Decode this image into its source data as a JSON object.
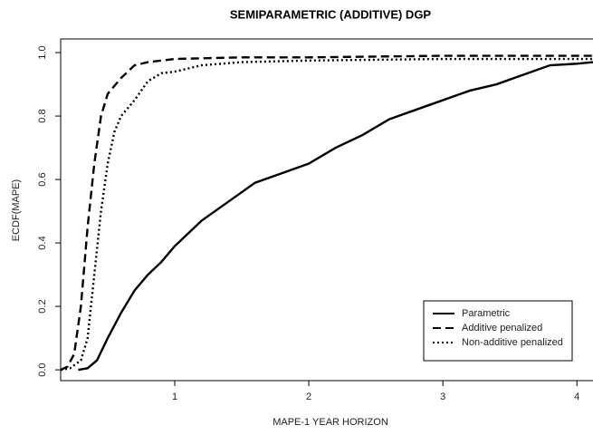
{
  "chart_data": {
    "type": "line",
    "title": "SEMIPARAMETRIC (ADDITIVE) DGP",
    "x_label": "MAPE-1 YEAR HORIZON",
    "y_label": "ECDF(MAPE)",
    "xlim": [
      0.149,
      4.12
    ],
    "ylim": [
      -0.034,
      1.043
    ],
    "xticks": [
      1,
      2,
      3,
      4
    ],
    "yticks": [
      {
        "value": 0,
        "label": "0.0"
      },
      {
        "value": 0.2,
        "label": "0.2"
      },
      {
        "value": 0.4,
        "label": "0.4"
      },
      {
        "value": 0.6,
        "label": "0.6"
      },
      {
        "value": 0.8,
        "label": "0.8"
      },
      {
        "value": 1,
        "label": "1.0"
      }
    ],
    "legend_position": "bottom-right",
    "series": [
      {
        "name": "Parametric",
        "color": "#000000",
        "dash": "solid",
        "x": [
          0.28,
          0.35,
          0.42,
          0.5,
          0.6,
          0.7,
          0.8,
          0.9,
          1.0,
          1.2,
          1.4,
          1.6,
          1.8,
          2.0,
          2.2,
          2.4,
          2.6,
          2.8,
          3.0,
          3.2,
          3.4,
          3.6,
          3.8,
          4.0,
          4.12
        ],
        "values": [
          0,
          0.005,
          0.03,
          0.1,
          0.18,
          0.25,
          0.3,
          0.34,
          0.39,
          0.47,
          0.53,
          0.59,
          0.62,
          0.65,
          0.7,
          0.74,
          0.79,
          0.82,
          0.85,
          0.88,
          0.9,
          0.93,
          0.96,
          0.965,
          0.97
        ]
      },
      {
        "name": "Additive penalized",
        "color": "#000000",
        "dash": "dashed",
        "x": [
          0.15,
          0.2,
          0.25,
          0.3,
          0.35,
          0.4,
          0.45,
          0.5,
          0.6,
          0.7,
          0.8,
          1.0,
          1.5,
          2.0,
          3.0,
          4.12
        ],
        "values": [
          0,
          0.01,
          0.05,
          0.2,
          0.45,
          0.65,
          0.8,
          0.87,
          0.92,
          0.96,
          0.97,
          0.98,
          0.985,
          0.985,
          0.99,
          0.99
        ]
      },
      {
        "name": "Non-additive penalized",
        "color": "#000000",
        "dash": "dotted",
        "x": [
          0.15,
          0.22,
          0.3,
          0.35,
          0.4,
          0.45,
          0.5,
          0.55,
          0.6,
          0.7,
          0.8,
          0.9,
          1.0,
          1.2,
          1.5,
          2.0,
          3.0,
          4.12
        ],
        "values": [
          0,
          0.005,
          0.03,
          0.1,
          0.3,
          0.5,
          0.65,
          0.75,
          0.8,
          0.85,
          0.91,
          0.935,
          0.94,
          0.96,
          0.97,
          0.975,
          0.98,
          0.98
        ]
      }
    ]
  }
}
